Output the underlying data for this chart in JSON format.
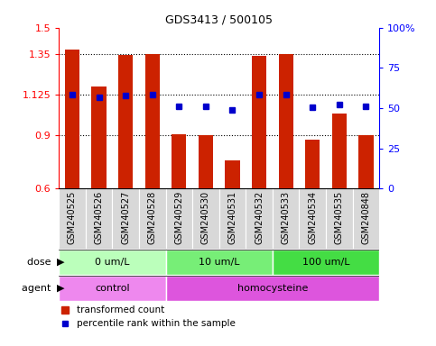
{
  "title": "GDS3413 / 500105",
  "samples": [
    "GSM240525",
    "GSM240526",
    "GSM240527",
    "GSM240528",
    "GSM240529",
    "GSM240530",
    "GSM240531",
    "GSM240532",
    "GSM240533",
    "GSM240534",
    "GSM240535",
    "GSM240848"
  ],
  "red_values": [
    1.38,
    1.17,
    1.345,
    1.35,
    0.905,
    0.9,
    0.76,
    1.34,
    1.35,
    0.875,
    1.02,
    0.9
  ],
  "blue_values": [
    1.125,
    1.11,
    1.12,
    1.125,
    1.06,
    1.06,
    1.04,
    1.125,
    1.125,
    1.055,
    1.07,
    1.06
  ],
  "ylim": [
    0.6,
    1.5
  ],
  "yticks": [
    0.6,
    0.9,
    1.125,
    1.35,
    1.5
  ],
  "ytick_labels": [
    "0.6",
    "0.9",
    "1.125",
    "1.35",
    "1.5"
  ],
  "y2ticks": [
    0,
    25,
    50,
    75,
    100
  ],
  "y2tick_labels": [
    "0",
    "25",
    "50",
    "75",
    "100%"
  ],
  "hlines": [
    0.9,
    1.125,
    1.35
  ],
  "bar_color": "#cc2200",
  "dot_color": "#0000cc",
  "bar_width": 0.55,
  "dose_groups": [
    {
      "label": "0 um/L",
      "start": 0,
      "end": 4,
      "color": "#bbffbb"
    },
    {
      "label": "10 um/L",
      "start": 4,
      "end": 8,
      "color": "#77ee77"
    },
    {
      "label": "100 um/L",
      "start": 8,
      "end": 12,
      "color": "#44dd44"
    }
  ],
  "agent_groups": [
    {
      "label": "control",
      "start": 0,
      "end": 4,
      "color": "#ee88ee"
    },
    {
      "label": "homocysteine",
      "start": 4,
      "end": 12,
      "color": "#dd55dd"
    }
  ],
  "legend_red": "transformed count",
  "legend_blue": "percentile rank within the sample",
  "dose_label": "dose",
  "agent_label": "agent",
  "plot_bg": "#ffffff",
  "fig_bg": "#ffffff",
  "grid_color": "#cccccc",
  "label_color_left": "#ff0000",
  "label_color_right": "#0000ff"
}
